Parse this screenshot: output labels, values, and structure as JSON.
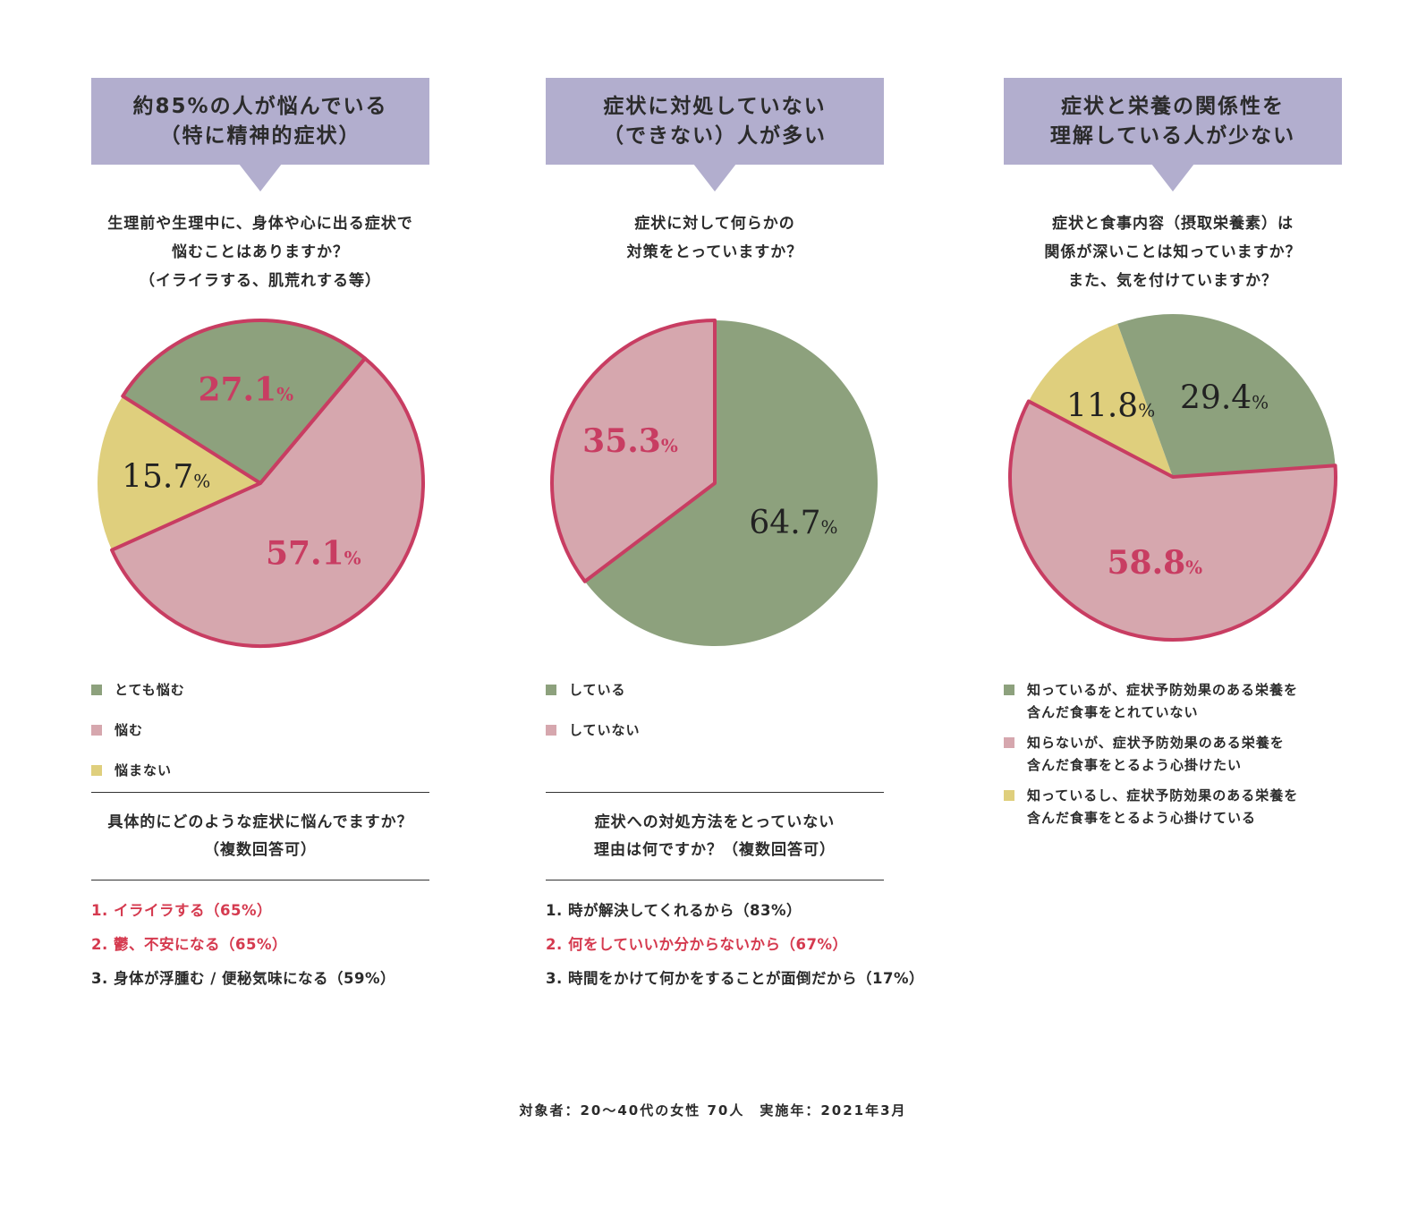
{
  "colors": {
    "green": "#8da17d",
    "pink": "#d6a7ae",
    "yellow": "#dfcf7d",
    "border": "#c83d62",
    "banner": "#b2aece",
    "highlight": "#d53a4f"
  },
  "panels": [
    {
      "banner": [
        "約85%の人が悩んでいる",
        "（特に精神的症状）"
      ],
      "question": [
        "生理前や生理中に、身体や心に出る症状で",
        "悩むことはありますか？",
        "（イライラする、肌荒れする等）"
      ],
      "sub_question": [
        "具体的にどのような症状に悩んでますか？",
        "（複数回答可）"
      ],
      "answers": [
        {
          "text": "1.  イライラする（65%）",
          "highlight": true
        },
        {
          "text": "2.  鬱、不安になる（65%）",
          "highlight": true
        },
        {
          "text": "3.  身体が浮腫む / 便秘気味になる（59%）",
          "highlight": false
        }
      ]
    },
    {
      "banner": [
        "症状に対処していない",
        "（できない）人が多い"
      ],
      "question": [
        "症状に対して何らかの",
        "対策をとっていますか？"
      ],
      "sub_question": [
        "症状への対処方法をとっていない",
        "理由は何ですか？（複数回答可）"
      ],
      "answers": [
        {
          "text": "1.  時が解決してくれるから（83%）",
          "highlight": false
        },
        {
          "text": "2.  何をしていいか分からないから（67%）",
          "highlight": true
        },
        {
          "text": "3.  時間をかけて何かをすることが面倒だから（17%）",
          "highlight": false
        }
      ]
    },
    {
      "banner": [
        "症状と栄養の関係性を",
        "理解している人が少ない"
      ],
      "question": [
        "症状と食事内容（摂取栄養素）は",
        "関係が深いことは知っていますか？",
        "また、気を付けていますか？"
      ]
    }
  ],
  "chart_data": [
    {
      "type": "pie",
      "slices": [
        {
          "label": "悩む",
          "value": 57.1,
          "display": "57.1",
          "unit": "%",
          "color": "#d6a7ae",
          "text_color": "#c83d62",
          "emphasis": true
        },
        {
          "label": "悩まない",
          "value": 15.7,
          "display": "15.7",
          "unit": "%",
          "color": "#dfcf7d",
          "text_color": "#222222",
          "emphasis": false
        },
        {
          "label": "とても悩む",
          "value": 27.1,
          "display": "27.1",
          "unit": "%",
          "color": "#8da17d",
          "text_color": "#c83d62",
          "emphasis": true
        }
      ],
      "legend": [
        {
          "label": "とても悩む",
          "color": "#8da17d"
        },
        {
          "label": "悩む",
          "color": "#d6a7ae"
        },
        {
          "label": "悩まない",
          "color": "#dfcf7d"
        }
      ],
      "highlighted_slices": [
        "悩む",
        "とても悩む"
      ]
    },
    {
      "type": "pie",
      "slices": [
        {
          "label": "している",
          "value": 64.7,
          "display": "64.7",
          "unit": "%",
          "color": "#8da17d",
          "text_color": "#222222",
          "emphasis": false
        },
        {
          "label": "していない",
          "value": 35.3,
          "display": "35.3",
          "unit": "%",
          "color": "#d6a7ae",
          "text_color": "#c83d62",
          "emphasis": true
        }
      ],
      "legend": [
        {
          "label": "している",
          "color": "#8da17d"
        },
        {
          "label": "していない",
          "color": "#d6a7ae"
        }
      ],
      "highlighted_slices": [
        "していない"
      ]
    },
    {
      "type": "pie",
      "slices": [
        {
          "label": "知らないが、症状予防効果のある栄養を含んだ食事をとるよう心掛けたい",
          "value": 58.8,
          "display": "58.8",
          "unit": "%",
          "color": "#d6a7ae",
          "text_color": "#c83d62",
          "emphasis": true
        },
        {
          "label": "知っているし、症状予防効果のある栄養を含んだ食事をとるよう心掛けている",
          "value": 11.8,
          "display": "11.8",
          "unit": "%",
          "color": "#dfcf7d",
          "text_color": "#222222",
          "emphasis": false
        },
        {
          "label": "知っているが、症状予防効果のある栄養を含んだ食事をとれていない",
          "value": 29.4,
          "display": "29.4",
          "unit": "%",
          "color": "#8da17d",
          "text_color": "#222222",
          "emphasis": false
        }
      ],
      "legend": [
        {
          "label": [
            "知っているが、症状予防効果のある栄養を",
            "含んだ食事をとれていない"
          ],
          "color": "#8da17d"
        },
        {
          "label": [
            "知らないが、症状予防効果のある栄養を",
            "含んだ食事をとるよう心掛けたい"
          ],
          "color": "#d6a7ae"
        },
        {
          "label": [
            "知っているし、症状予防効果のある栄養を",
            "含んだ食事をとるよう心掛けている"
          ],
          "color": "#dfcf7d"
        }
      ],
      "highlighted_slices": [
        "知らないが、症状予防効果のある栄養を含んだ食事をとるよう心掛けたい"
      ]
    }
  ],
  "footer": "対象者：20〜40代の女性 70人　実施年：2021年3月"
}
